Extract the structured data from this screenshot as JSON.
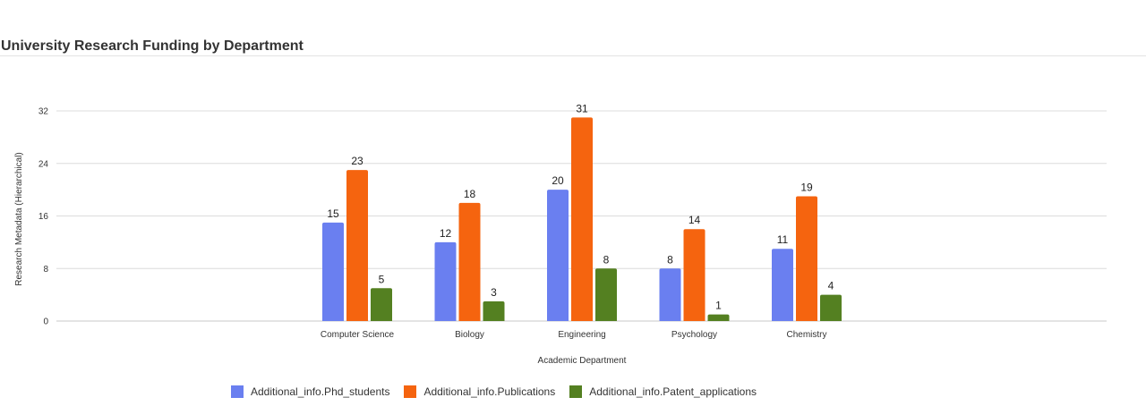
{
  "chart_data": {
    "type": "bar",
    "title": "University Research Funding by Department",
    "xlabel": "Academic Department",
    "ylabel": "Research Metadata (Hierarchical)",
    "ylim": [
      0,
      32
    ],
    "yticks": [
      0,
      8,
      16,
      24,
      32
    ],
    "grid": true,
    "legend_position": "bottom",
    "categories": [
      "Computer Science",
      "Biology",
      "Engineering",
      "Psychology",
      "Chemistry"
    ],
    "series": [
      {
        "name": "Additional_info.Phd_students",
        "color": "#6a7ff0",
        "values": [
          15,
          12,
          20,
          8,
          11
        ]
      },
      {
        "name": "Additional_info.Publications",
        "color": "#f5640f",
        "values": [
          23,
          18,
          31,
          14,
          19
        ]
      },
      {
        "name": "Additional_info.Patent_applications",
        "color": "#548021",
        "values": [
          5,
          3,
          8,
          1,
          4
        ]
      }
    ]
  }
}
